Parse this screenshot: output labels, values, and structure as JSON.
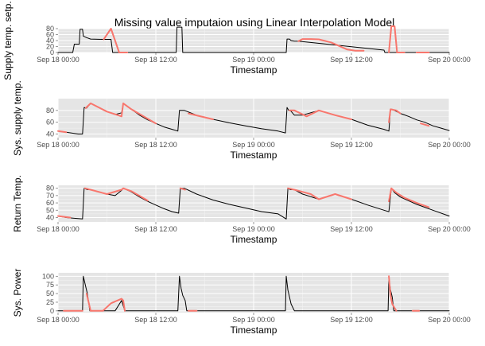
{
  "title": "Missing value imputaion using Linear Interpolation Model",
  "colors": {
    "panel": "#e5e5e5",
    "grid_major": "#ffffff",
    "grid_minor": "#f2f2f2",
    "observed": "#000000",
    "imputed": "#f8766d"
  },
  "chart_data": [
    {
      "type": "line",
      "ylabel": "Supply temp. setp.",
      "xlabel": "Timestamp",
      "x_ticks": [
        "Sep 18 00:00",
        "Sep 18 12:00",
        "Sep 19 00:00",
        "Sep 19 12:00",
        "Sep 20 00:00"
      ],
      "x_range_hours": [
        0,
        48
      ],
      "y_ticks": [
        0,
        20,
        40,
        60,
        80
      ],
      "ylim": [
        0,
        80
      ],
      "series": [
        {
          "name": "observed",
          "x": [
            0,
            1.8,
            2.0,
            2.6,
            2.7,
            3.0,
            3.1,
            3.5,
            4.0,
            5.5,
            6.0,
            6.5,
            6.7,
            7.5,
            14.5,
            14.6,
            15.2,
            15.3,
            28.0,
            28.1,
            28.4,
            28.6,
            29.0,
            29.5,
            40.0,
            40.1,
            48.0
          ],
          "y": [
            0,
            0,
            28,
            28,
            78,
            78,
            55,
            50,
            45,
            44,
            44,
            44,
            0,
            0,
            0,
            85,
            85,
            0,
            0,
            45,
            45,
            40,
            38,
            38,
            8,
            0,
            0
          ]
        },
        {
          "name": "imputed",
          "x": [
            5.6,
            6.5,
            7.5
          ],
          "y": [
            44,
            80,
            0
          ]
        },
        {
          "name": "imputed",
          "x": [
            7.5,
            8.5
          ],
          "y": [
            0,
            0
          ]
        },
        {
          "name": "imputed",
          "x": [
            29.5,
            30.0,
            31.0,
            32.0,
            33.5,
            34.5,
            35.5,
            36.5,
            37.5
          ],
          "y": [
            38,
            45,
            45,
            44,
            34,
            22,
            10,
            6,
            6
          ]
        },
        {
          "name": "imputed",
          "x": [
            40.6,
            40.9,
            41.3,
            41.6
          ],
          "y": [
            0,
            88,
            88,
            0
          ]
        },
        {
          "name": "imputed",
          "x": [
            41.6,
            42.5
          ],
          "y": [
            0,
            0
          ]
        },
        {
          "name": "imputed",
          "x": [
            44.0,
            45.5
          ],
          "y": [
            0,
            0
          ]
        }
      ]
    },
    {
      "type": "line",
      "ylabel": "Sys. supply temp.",
      "xlabel": "Timestamp",
      "x_ticks": [
        "Sep 18 00:00",
        "Sep 18 12:00",
        "Sep 19 00:00",
        "Sep 19 12:00",
        "Sep 20 00:00"
      ],
      "x_range_hours": [
        0,
        48
      ],
      "y_ticks": [
        40,
        60,
        80
      ],
      "ylim": [
        34,
        100
      ],
      "series": [
        {
          "name": "observed",
          "x": [
            0,
            1,
            2,
            2.5,
            3.0,
            3.2,
            3.5,
            4,
            5,
            6,
            7,
            7.8,
            8,
            9,
            10,
            11,
            12,
            13,
            14,
            14.7,
            14.9,
            15.5,
            17,
            19,
            21,
            23,
            25,
            27,
            27.9,
            28.1,
            28.3,
            28.5,
            29,
            30,
            32,
            34,
            36,
            38,
            40,
            40.6,
            40.8,
            41,
            42,
            43,
            44,
            45,
            46,
            47,
            48
          ],
          "y": [
            45,
            43,
            41,
            40,
            40,
            85,
            84,
            92,
            85,
            78,
            73,
            76,
            92,
            82,
            72,
            64,
            58,
            52,
            48,
            45,
            80,
            80,
            72,
            65,
            59,
            54,
            49,
            45,
            42,
            85,
            80,
            80,
            72,
            72,
            80,
            72,
            65,
            55,
            48,
            45,
            82,
            82,
            75,
            70,
            64,
            60,
            54,
            50,
            46
          ]
        },
        {
          "name": "imputed",
          "x": [
            0,
            1.0
          ],
          "y": [
            45,
            43
          ]
        },
        {
          "name": "imputed",
          "x": [
            3.4,
            4.0,
            6.0,
            7.8,
            8.0,
            9.0,
            12.0
          ],
          "y": [
            84,
            92,
            78,
            70,
            92,
            82,
            58
          ]
        },
        {
          "name": "imputed",
          "x": [
            16.0,
            19.0
          ],
          "y": [
            75,
            65
          ]
        },
        {
          "name": "imputed",
          "x": [
            28.4,
            29.0,
            30.5,
            32.0,
            34.0,
            36.0
          ],
          "y": [
            80,
            80,
            70,
            80,
            72,
            65
          ]
        },
        {
          "name": "imputed",
          "x": [
            40.6,
            40.8,
            41.5,
            42.0
          ],
          "y": [
            60,
            82,
            80,
            75
          ]
        },
        {
          "name": "imputed",
          "x": [
            44.5,
            45.5
          ],
          "y": [
            58,
            54
          ]
        }
      ]
    },
    {
      "type": "line",
      "ylabel": "Return Temp.",
      "xlabel": "Timestamp",
      "x_ticks": [
        "Sep 18 00:00",
        "Sep 18 12:00",
        "Sep 19 00:00",
        "Sep 19 12:00",
        "Sep 20 00:00"
      ],
      "x_range_hours": [
        0,
        48
      ],
      "y_ticks": [
        40,
        50,
        60,
        70,
        80
      ],
      "ylim": [
        34,
        84
      ],
      "series": [
        {
          "name": "observed",
          "x": [
            0,
            1,
            2,
            3.0,
            3.2,
            3.6,
            4,
            5,
            6,
            7,
            7.8,
            8,
            9,
            10,
            11,
            12,
            13,
            14,
            14.8,
            15.0,
            15.5,
            17,
            19,
            21,
            23,
            25,
            27,
            28.0,
            28.2,
            28.5,
            29,
            30,
            32,
            34,
            36,
            38,
            40,
            40.6,
            40.9,
            41.3,
            42,
            44,
            46,
            48
          ],
          "y": [
            42,
            40,
            39,
            38,
            80,
            78,
            78,
            75,
            72,
            70,
            77,
            80,
            75,
            68,
            62,
            57,
            52,
            48,
            46,
            80,
            80,
            72,
            64,
            58,
            53,
            48,
            45,
            38,
            80,
            78,
            78,
            72,
            65,
            72,
            65,
            57,
            50,
            48,
            80,
            74,
            68,
            58,
            50,
            42
          ]
        },
        {
          "name": "imputed",
          "x": [
            0,
            1.5
          ],
          "y": [
            42,
            40
          ]
        },
        {
          "name": "imputed",
          "x": [
            3.3,
            4.0,
            6.0,
            7.8,
            8.0,
            9.0,
            11.0
          ],
          "y": [
            80,
            78,
            72,
            78,
            80,
            76,
            63
          ]
        },
        {
          "name": "imputed",
          "x": [
            15.0,
            15.6
          ],
          "y": [
            80,
            78
          ]
        },
        {
          "name": "imputed",
          "x": [
            28.2,
            29.0,
            31.0,
            32.0,
            34.0,
            36.0
          ],
          "y": [
            80,
            78,
            72,
            65,
            72,
            65
          ]
        },
        {
          "name": "imputed",
          "x": [
            40.6,
            40.9,
            41.5,
            42.5,
            44.0,
            45.5
          ],
          "y": [
            62,
            80,
            74,
            67,
            60,
            54
          ]
        }
      ]
    },
    {
      "type": "line",
      "ylabel": "Sys. Power",
      "xlabel": "Timestamp",
      "x_ticks": [
        "Sep 18 00:00",
        "Sep 18 12:00",
        "Sep 19 00:00",
        "Sep 19 12:00",
        "Sep 20 00:00"
      ],
      "x_range_hours": [
        0,
        48
      ],
      "y_ticks": [
        0,
        25,
        50,
        75,
        100
      ],
      "ylim": [
        -5,
        110
      ],
      "series": [
        {
          "name": "observed",
          "x": [
            0,
            3.0,
            3.1,
            3.4,
            3.6,
            3.9,
            4.5,
            7.0,
            7.8,
            8.2,
            14.7,
            14.9,
            15.1,
            15.3,
            15.6,
            15.8,
            16.5,
            27.9,
            28.0,
            28.2,
            28.4,
            28.6,
            29.0,
            40.5,
            40.6,
            40.8,
            41.0,
            41.2,
            48.0
          ],
          "y": [
            0,
            0,
            100,
            70,
            50,
            0,
            0,
            0,
            30,
            0,
            0,
            100,
            65,
            45,
            30,
            0,
            0,
            0,
            100,
            60,
            40,
            20,
            0,
            0,
            95,
            60,
            40,
            0,
            0
          ]
        },
        {
          "name": "imputed",
          "x": [
            0.7,
            3.0
          ],
          "y": [
            0,
            0
          ]
        },
        {
          "name": "imputed",
          "x": [
            3.5,
            4.0,
            5.5,
            6.5,
            7.8,
            8.0,
            8.2
          ],
          "y": [
            50,
            0,
            0,
            22,
            35,
            30,
            0
          ]
        },
        {
          "name": "imputed",
          "x": [
            16.0,
            17.0
          ],
          "y": [
            0,
            0
          ]
        },
        {
          "name": "imputed",
          "x": [
            40.6,
            40.8,
            41.0,
            41.5
          ],
          "y": [
            100,
            45,
            20,
            0
          ]
        },
        {
          "name": "imputed",
          "x": [
            43.5,
            44.3
          ],
          "y": [
            0,
            0
          ]
        }
      ]
    }
  ]
}
